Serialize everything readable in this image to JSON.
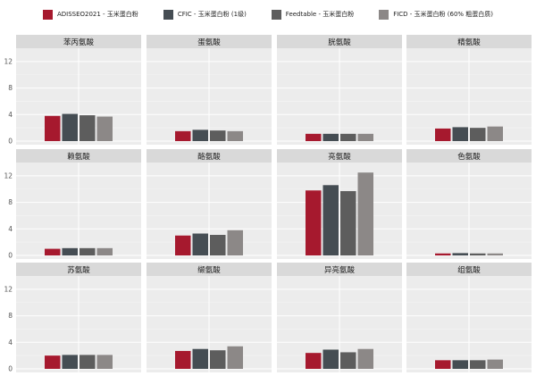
{
  "legend": [
    {
      "label": "ADISSEO2021 - 玉米蛋白粉",
      "color": "#a6192e"
    },
    {
      "label": "CFIC - 玉米蛋白粉 (1级)",
      "color": "#454d53"
    },
    {
      "label": "Feedtable - 玉米蛋白粉",
      "color": "#5d5d5d"
    },
    {
      "label": "FICD - 玉米蛋白粉 (60% 粗蛋白质)",
      "color": "#8c8887"
    }
  ],
  "chart_data": {
    "type": "bar",
    "ylim": [
      0,
      13.2
    ],
    "y_ticks": [
      0,
      4,
      8,
      12
    ],
    "grid": true,
    "legend_position": "top",
    "series_names": [
      "ADISSEO2021 - 玉米蛋白粉",
      "CFIC - 玉米蛋白粉 (1级)",
      "Feedtable - 玉米蛋白粉",
      "FICD - 玉米蛋白粉 (60% 粗蛋白质)"
    ],
    "panels": [
      {
        "title": "苯丙氨酸",
        "values": [
          3.8,
          4.1,
          3.9,
          3.7
        ]
      },
      {
        "title": "蛋氨酸",
        "values": [
          1.5,
          1.7,
          1.6,
          1.5
        ]
      },
      {
        "title": "胱氨酸",
        "values": [
          1.1,
          1.1,
          1.1,
          1.1
        ]
      },
      {
        "title": "精氨酸",
        "values": [
          1.9,
          2.1,
          2.0,
          2.2
        ]
      },
      {
        "title": "赖氨酸",
        "values": [
          1.0,
          1.1,
          1.1,
          1.1
        ]
      },
      {
        "title": "酪氨酸",
        "values": [
          3.0,
          3.3,
          3.1,
          3.8
        ]
      },
      {
        "title": "亮氨酸",
        "values": [
          9.8,
          10.6,
          9.7,
          12.5
        ]
      },
      {
        "title": "色氨酸",
        "values": [
          0.3,
          0.35,
          0.3,
          0.3
        ]
      },
      {
        "title": "苏氨酸",
        "values": [
          2.0,
          2.1,
          2.1,
          2.1
        ]
      },
      {
        "title": "缬氨酸",
        "values": [
          2.7,
          3.0,
          2.8,
          3.4
        ]
      },
      {
        "title": "异亮氨酸",
        "values": [
          2.4,
          2.9,
          2.5,
          3.0
        ]
      },
      {
        "title": "组氨酸",
        "values": [
          1.3,
          1.3,
          1.3,
          1.4
        ]
      }
    ]
  }
}
